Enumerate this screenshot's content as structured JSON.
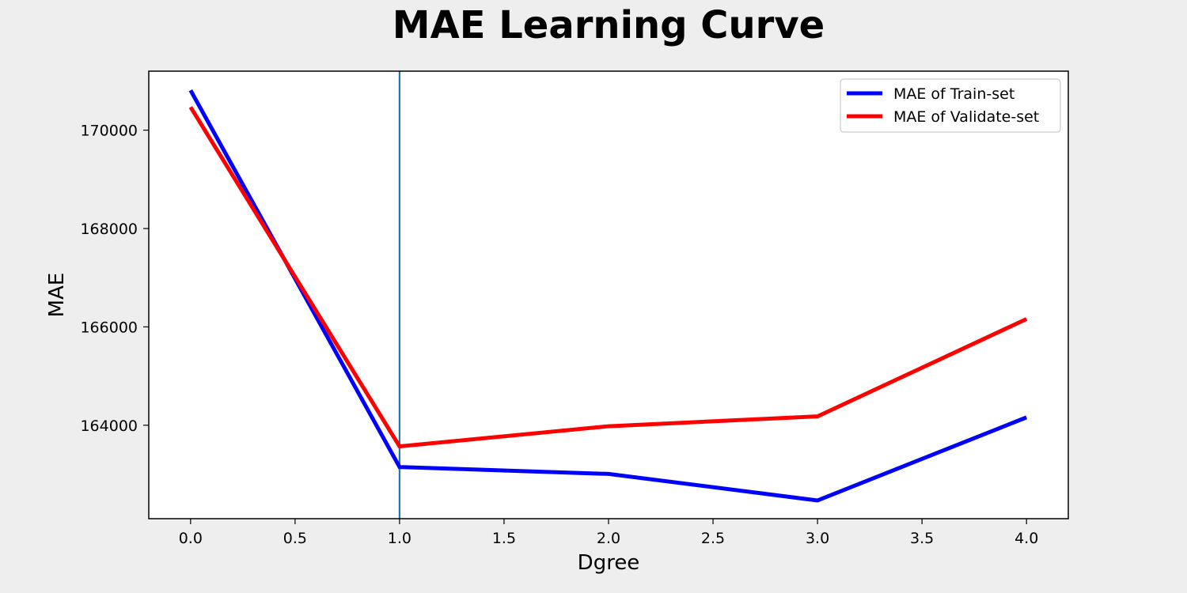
{
  "chart_data": {
    "type": "line",
    "title": "MAE Learning Curve",
    "xlabel": "Dgree",
    "ylabel": "MAE",
    "xlim": [
      -0.2,
      4.2
    ],
    "ylim": [
      162100,
      171200
    ],
    "xticks": [
      "0.0",
      "0.5",
      "1.0",
      "1.5",
      "2.0",
      "2.5",
      "3.0",
      "3.5",
      "4.0"
    ],
    "yticks": [
      "164000",
      "166000",
      "168000",
      "170000"
    ],
    "grid": false,
    "legend_position": "top-right",
    "vline": {
      "x": 1.0,
      "color": "#1f77b4"
    },
    "x": [
      0,
      1,
      2,
      3,
      4
    ],
    "series": [
      {
        "name": "MAE of Train-set",
        "color": "#0000ff",
        "values": [
          170810,
          163150,
          163010,
          162470,
          164160
        ]
      },
      {
        "name": "MAE of Validate-set",
        "color": "#ff0000",
        "values": [
          170470,
          163570,
          163980,
          164180,
          166160
        ]
      }
    ]
  }
}
